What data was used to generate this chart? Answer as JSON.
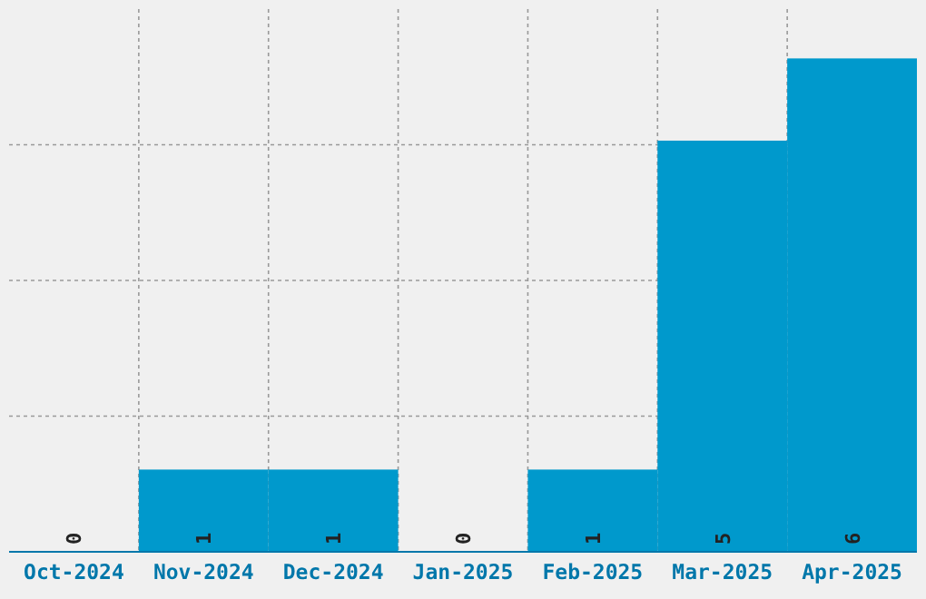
{
  "chart_data": {
    "type": "bar",
    "categories": [
      "Oct-2024",
      "Nov-2024",
      "Dec-2024",
      "Jan-2025",
      "Feb-2025",
      "Mar-2025",
      "Apr-2025"
    ],
    "values": [
      0,
      1,
      1,
      0,
      1,
      5,
      6
    ],
    "color": "#0099cc",
    "ylim": [
      0,
      6.6
    ],
    "yticks": [
      {
        "value": 1.65,
        "label": null
      },
      {
        "value": 3.3,
        "label": null
      },
      {
        "value": 4.95,
        "label": null
      }
    ],
    "tick_labels": "x",
    "grid": true,
    "data_labels": true
  }
}
